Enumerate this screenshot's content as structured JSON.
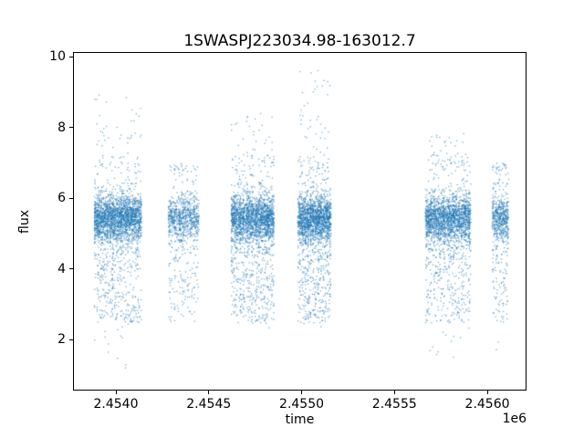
{
  "figure": {
    "background": "#ffffff"
  },
  "chart_data": {
    "type": "scatter",
    "title": "1SWASPJ223034.98-163012.7",
    "xlabel": "time",
    "ylabel": "flux",
    "x_offset_label": "1e6",
    "marker_color": "#1f77b4",
    "marker_size": 1.3,
    "marker_alpha": 0.6,
    "grid": false,
    "legend": "none",
    "xlim": [
      2453769,
      2456211
    ],
    "ylim": [
      0.565,
      10.135
    ],
    "x_ticks": [
      {
        "value": 2454000,
        "label": "2.4540"
      },
      {
        "value": 2454500,
        "label": "2.4545"
      },
      {
        "value": 2455000,
        "label": "2.4550"
      },
      {
        "value": 2455500,
        "label": "2.4555"
      },
      {
        "value": 2456000,
        "label": "2.4560"
      }
    ],
    "y_ticks": [
      {
        "value": 2,
        "label": "2"
      },
      {
        "value": 4,
        "label": "4"
      },
      {
        "value": 6,
        "label": "6"
      },
      {
        "value": 8,
        "label": "8"
      },
      {
        "value": 10,
        "label": "10"
      }
    ],
    "flux_band": {
      "mean": 5.45,
      "sd": 0.32
    },
    "seed": 1337,
    "clusters": [
      {
        "t_start": 2453880,
        "t_end": 2454135,
        "n_points": 2600,
        "streaks": 48,
        "flux_min": 1.15,
        "flux_max": 8.95
      },
      {
        "t_start": 2454280,
        "t_end": 2454445,
        "n_points": 900,
        "streaks": 30,
        "flux_min": 2.45,
        "flux_max": 7.0
      },
      {
        "t_start": 2454620,
        "t_end": 2454850,
        "n_points": 2400,
        "streaks": 46,
        "flux_min": 2.2,
        "flux_max": 8.45
      },
      {
        "t_start": 2454980,
        "t_end": 2455160,
        "n_points": 2100,
        "streaks": 36,
        "flux_min": 2.3,
        "flux_max": 9.65
      },
      {
        "t_start": 2455670,
        "t_end": 2455915,
        "n_points": 2300,
        "streaks": 46,
        "flux_min": 1.4,
        "flux_max": 7.85
      },
      {
        "t_start": 2456030,
        "t_end": 2456120,
        "n_points": 650,
        "streaks": 17,
        "flux_min": 1.05,
        "flux_max": 7.0
      }
    ]
  }
}
